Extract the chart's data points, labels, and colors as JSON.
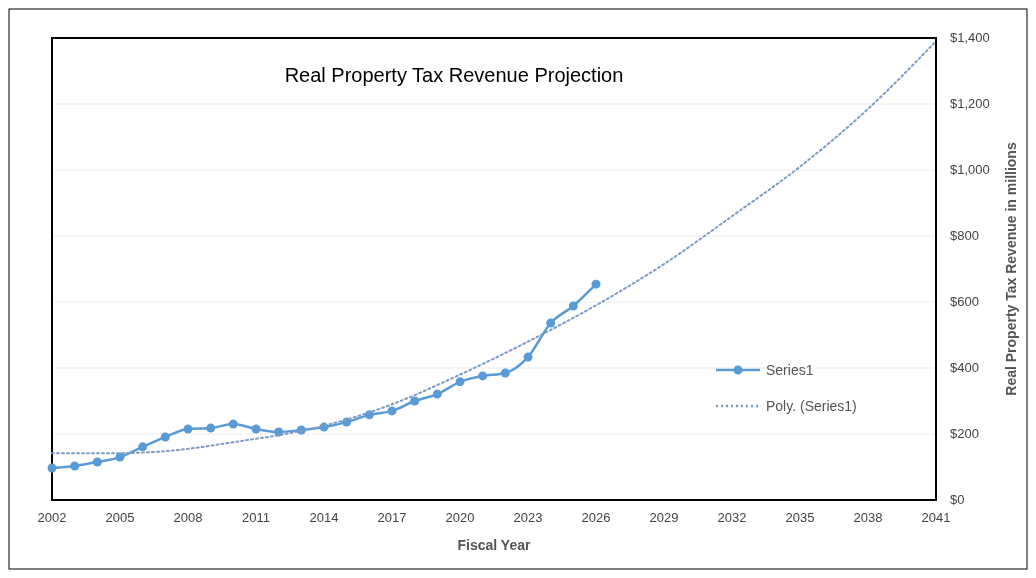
{
  "chart_data": {
    "type": "line",
    "title": "Real Property Tax Revenue Projection",
    "xlabel": "Fiscal Year",
    "y2label": "Real Property Tax Revenue in millions",
    "xlim": [
      2002,
      2041
    ],
    "xticks": [
      2002,
      2005,
      2008,
      2011,
      2014,
      2017,
      2020,
      2023,
      2026,
      2029,
      2032,
      2035,
      2038,
      2041
    ],
    "y2lim": [
      0,
      1400
    ],
    "y2ticks": [
      {
        "value": 0,
        "label": "$0"
      },
      {
        "value": 200,
        "label": "$200"
      },
      {
        "value": 400,
        "label": "$400"
      },
      {
        "value": 600,
        "label": "$600"
      },
      {
        "value": 800,
        "label": "$800"
      },
      {
        "value": 1000,
        "label": "$1,000"
      },
      {
        "value": 1200,
        "label": "$1,200"
      },
      {
        "value": 1400,
        "label": "$1,400"
      }
    ],
    "grid": "y",
    "legend": "right",
    "series": [
      {
        "name": "Series1",
        "color": "#5b9bd5",
        "axis": "y2",
        "marker": "circle",
        "line_style": "solid",
        "x": [
          2002,
          2003,
          2004,
          2005,
          2006,
          2007,
          2008,
          2009,
          2010,
          2011,
          2012,
          2013,
          2014,
          2015,
          2016,
          2017,
          2018,
          2019,
          2020,
          2021,
          2022,
          2023,
          2024,
          2025,
          2026
        ],
        "values": [
          97,
          103,
          115,
          130,
          161,
          191,
          215,
          218,
          230,
          215,
          206,
          212,
          221,
          236,
          258,
          270,
          300,
          321,
          358,
          376,
          385,
          433,
          536,
          588,
          654
        ]
      },
      {
        "name": "Poly. (Series1)",
        "color": "#7f9cc4",
        "axis": "y2",
        "marker": "none",
        "line_style": "dotted",
        "x": [
          2002,
          2005,
          2007,
          2010,
          2014,
          2017,
          2020,
          2023,
          2026,
          2029,
          2032,
          2035,
          2038,
          2041
        ],
        "values": [
          142,
          142,
          148,
          175,
          225,
          290,
          380,
          480,
          590,
          715,
          860,
          1010,
          1185,
          1390
        ]
      }
    ]
  }
}
